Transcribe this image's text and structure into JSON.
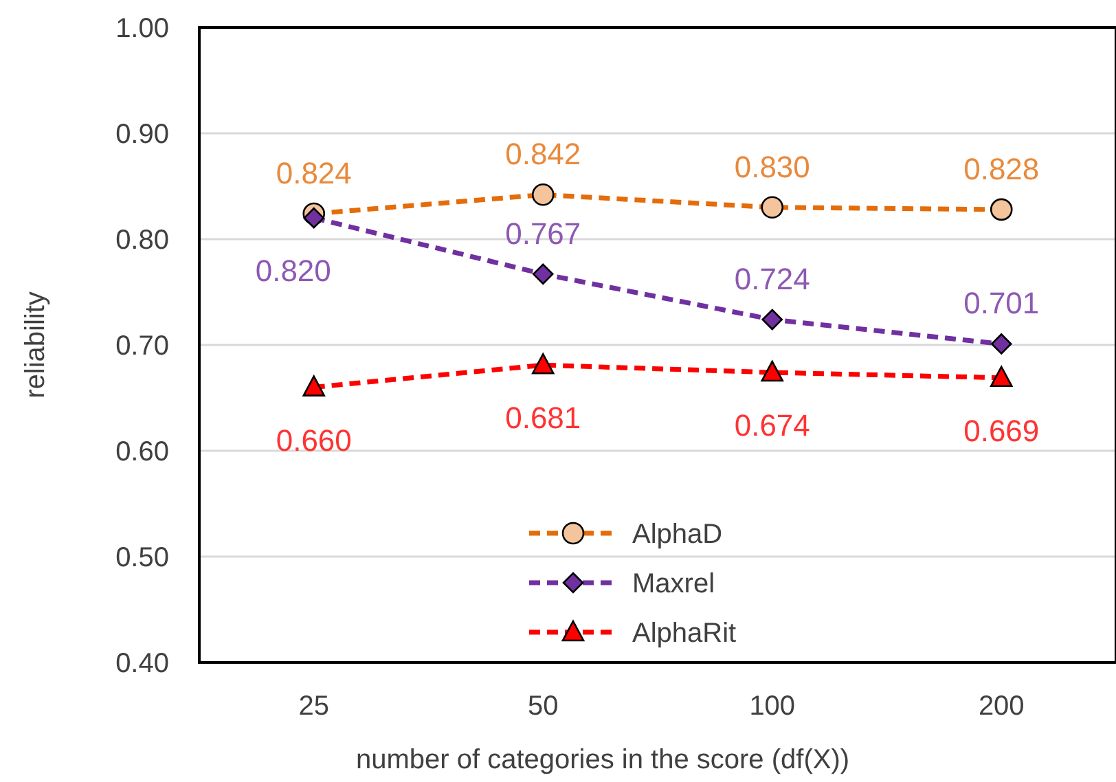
{
  "chart_data": {
    "type": "line",
    "xlabel": "number of categories in the score (df(X))",
    "ylabel": "reliability",
    "categories": [
      "25",
      "50",
      "100",
      "200"
    ],
    "ylim": [
      0.4,
      1.0
    ],
    "yticks": [
      {
        "value": 0.4,
        "label": "0.40"
      },
      {
        "value": 0.5,
        "label": "0.50"
      },
      {
        "value": 0.6,
        "label": "0.60"
      },
      {
        "value": 0.7,
        "label": "0.70"
      },
      {
        "value": 0.8,
        "label": "0.80"
      },
      {
        "value": 0.9,
        "label": "0.90"
      },
      {
        "value": 1.0,
        "label": "1.00"
      }
    ],
    "grid": "y",
    "legend": "bottom",
    "line_style": "dashed",
    "series": [
      {
        "name": "AlphaD",
        "color": "#e46c0a",
        "marker": "circle",
        "values": [
          0.824,
          0.842,
          0.83,
          0.828
        ],
        "value_labels": [
          "0.824",
          "0.842",
          "0.830",
          "0.828"
        ]
      },
      {
        "name": "Maxrel",
        "color": "#7030a0",
        "marker": "diamond",
        "values": [
          0.82,
          0.767,
          0.724,
          0.701
        ],
        "value_labels": [
          "0.820",
          "0.767",
          "0.724",
          "0.701"
        ]
      },
      {
        "name": "AlphaRit",
        "color": "#ff0000",
        "marker": "triangle",
        "values": [
          0.66,
          0.681,
          0.674,
          0.669
        ],
        "value_labels": [
          "0.660",
          "0.681",
          "0.674",
          "0.669"
        ]
      }
    ]
  }
}
